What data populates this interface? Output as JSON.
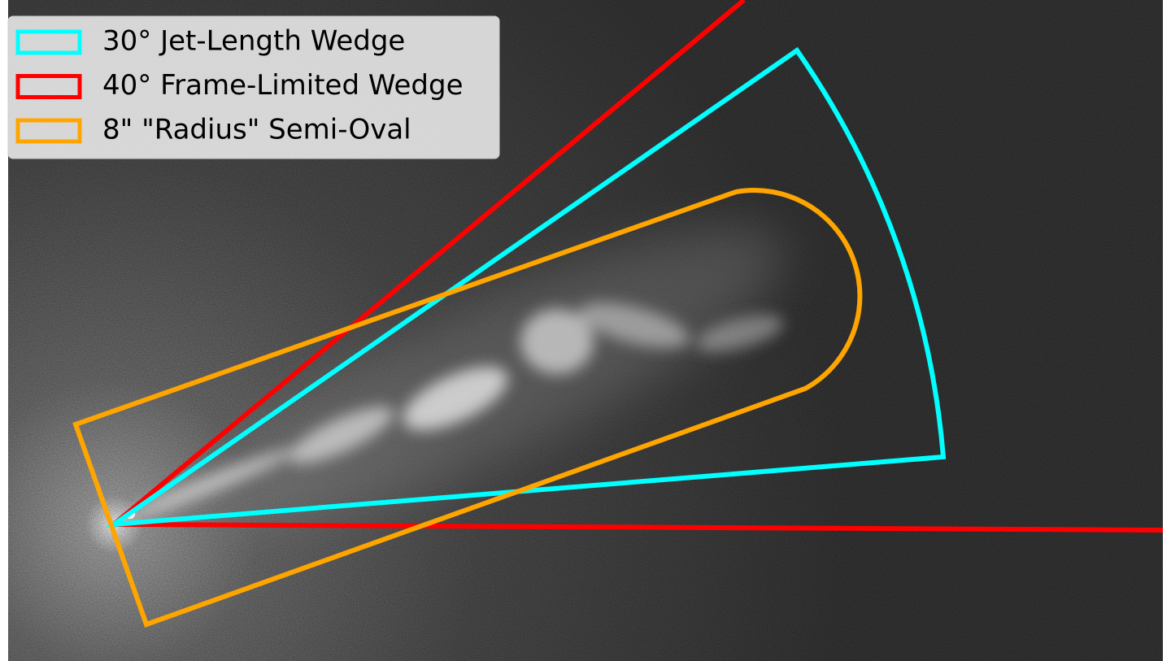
{
  "legend": {
    "items": [
      {
        "label": "30° Jet-Length Wedge",
        "color": "#00ffff"
      },
      {
        "label": "40° Frame-Limited Wedge",
        "color": "#ff0000"
      },
      {
        "label": "8\" \"Radius\" Semi-Oval",
        "color": "#ffa500"
      }
    ]
  }
}
